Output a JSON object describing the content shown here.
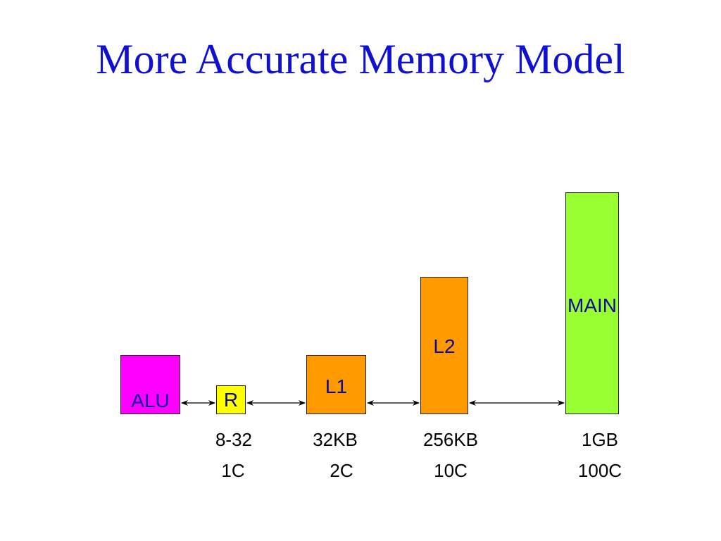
{
  "slide": {
    "title": "More Accurate Memory Model"
  },
  "boxes": {
    "alu": "ALU",
    "register": "R",
    "l1": "L1",
    "l2": "L2",
    "main": "MAIN"
  },
  "specs": {
    "register": {
      "size": "8-32",
      "cycles": "1C"
    },
    "l1": {
      "size": "32KB",
      "cycles": "2C"
    },
    "l2": {
      "size": "256KB",
      "cycles": "10C"
    },
    "main": {
      "size": "1GB",
      "cycles": "100C"
    }
  },
  "colors": {
    "title": "#1010d0",
    "alu": "#ff00ff",
    "register": "#ffff00",
    "cache": "#ff9900",
    "main": "#99ff33",
    "box_text": "#0a0a9a"
  }
}
